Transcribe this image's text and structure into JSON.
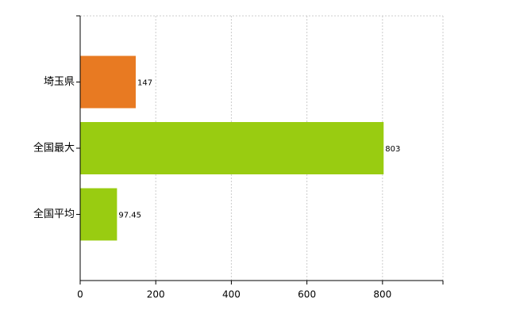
{
  "chart_data": {
    "type": "bar",
    "orientation": "horizontal",
    "categories": [
      "埼玉県",
      "全国最大",
      "全国平均"
    ],
    "values": [
      147,
      803,
      97.45
    ],
    "colors": [
      "#e87a22",
      "#99cc11",
      "#99cc11"
    ],
    "xlim": [
      0,
      960
    ],
    "xticks": [
      0,
      200,
      400,
      600,
      800
    ],
    "grid": true
  }
}
